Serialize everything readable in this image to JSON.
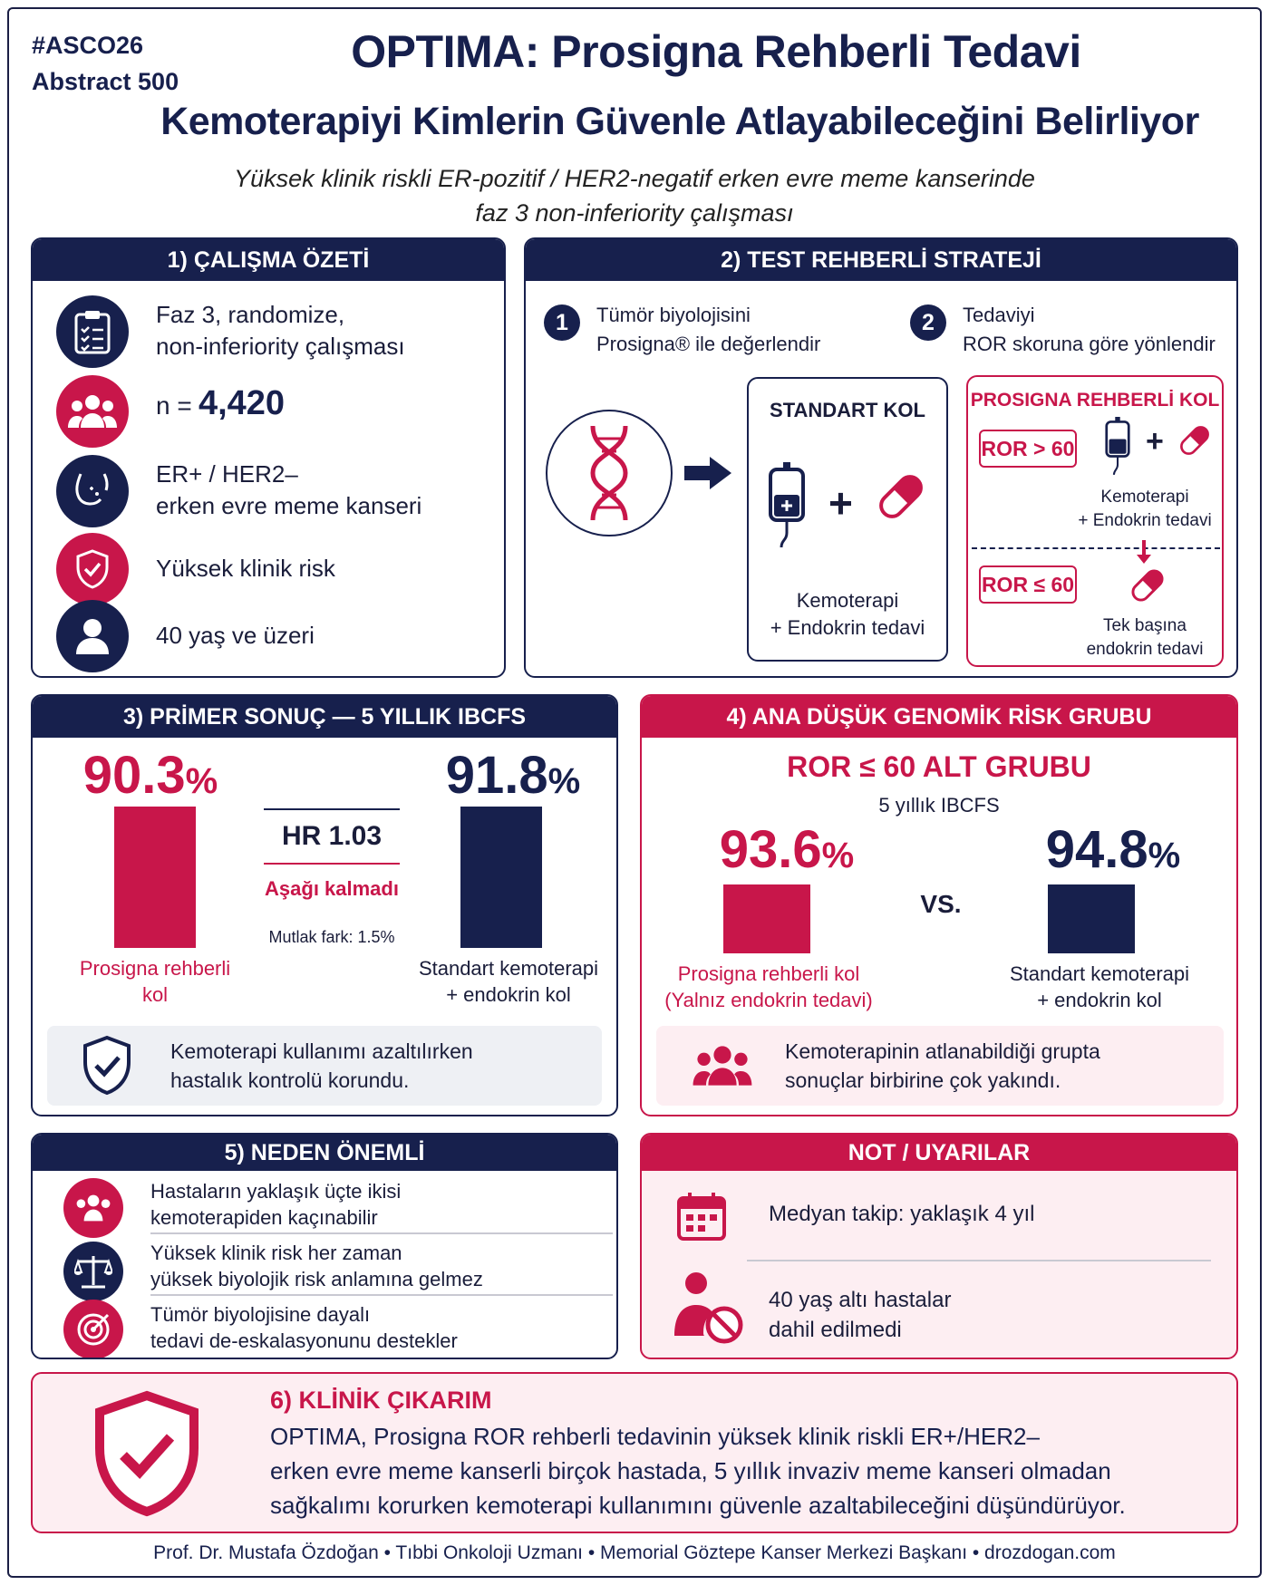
{
  "header": {
    "tag": "#ASCO26",
    "abstract": "Abstract 500",
    "title1": "OPTIMA: Prosigna Rehberli Tedavi",
    "title2": "Kemoterapiyi Kimlerin Güvenle Atlayabileceğini Belirliyor",
    "subtitle1": "Yüksek klinik riskli ER-pozitif / HER2-negatif erken evre meme kanserinde",
    "subtitle2": "faz 3 non-inferiority çalışması"
  },
  "s1": {
    "head": "1) ÇALIŞMA ÖZETİ",
    "design_1": "Faz 3, randomize,",
    "design_2": "non-inferiority çalışması",
    "n_prefix": "n =",
    "n_value": "4,420",
    "pop_1": "ER+ / HER2–",
    "pop_2": "erken evre meme kanseri",
    "risk": "Yüksek klinik risk",
    "age": "40 yaş ve üzeri"
  },
  "s2": {
    "head": "2) TEST REHBERLİ STRATEJİ",
    "step1_num": "1",
    "step1_a": "Tümör biyolojisini",
    "step1_b": "Prosigna® ile değerlendir",
    "step2_num": "2",
    "step2_a": "Tedaviyi",
    "step2_b": "ROR skoruna göre yönlendir",
    "std_title": "STANDART KOL",
    "std_a": "Kemoterapi",
    "std_b": "+ Endokrin tedavi",
    "pg_title": "PROSIGNA REHBERLİ KOL",
    "ror_high": "ROR > 60",
    "high_a": "Kemoterapi",
    "high_b": "+ Endokrin tedavi",
    "ror_low": "ROR ≤ 60",
    "low_a": "Tek başına",
    "low_b": "endokrin tedavi",
    "plus": "+"
  },
  "s3": {
    "head": "3) PRİMER SONUÇ — 5 YILLIK IBCFS",
    "left_pct": "90.3",
    "right_pct": "91.8",
    "pct_sign": "%",
    "hr": "HR 1.03",
    "noninf": "Aşağı kalmadı",
    "diff": "Mutlak fark: 1.5%",
    "left_a": "Prosigna rehberli",
    "left_b": "kol",
    "right_a": "Standart kemoterapi",
    "right_b": "+ endokrin kol",
    "note_a": "Kemoterapi kullanımı azaltılırken",
    "note_b": "hastalık kontrolü korundu."
  },
  "s4": {
    "head": "4) ANA DÜŞÜK GENOMİK RİSK GRUBU",
    "sub": "ROR ≤ 60 ALT GRUBU",
    "sub2": "5 yıllık IBCFS",
    "left_pct": "93.6",
    "right_pct": "94.8",
    "pct_sign": "%",
    "vs": "VS.",
    "left_a": "Prosigna rehberli kol",
    "left_b": "(Yalnız endokrin tedavi)",
    "right_a": "Standart kemoterapi",
    "right_b": "+ endokrin kol",
    "note_a": "Kemoterapinin atlanabildiği grupta",
    "note_b": "sonuçlar birbirine çok yakındı."
  },
  "s5": {
    "head": "5) NEDEN ÖNEMLİ",
    "i1a": "Hastaların yaklaşık üçte ikisi",
    "i1b": "kemoterapiden kaçınabilir",
    "i2a": "Yüksek klinik risk her zaman",
    "i2b": "yüksek biyolojik risk anlamına gelmez",
    "i3a": "Tümör biyolojisine dayalı",
    "i3b": "tedavi de-eskalasyonunu destekler"
  },
  "notes": {
    "head": "NOT / UYARILAR",
    "followup": "Medyan takip: yaklaşık 4 yıl",
    "age_a": "40 yaş altı hastalar",
    "age_b": "dahil edilmedi"
  },
  "s6": {
    "head": "6) KLİNİK ÇIKARIM",
    "l1": "OPTIMA, Prosigna ROR rehberli tedavinin yüksek klinik riskli ER+/HER2–",
    "l2": "erken evre meme kanserli birçok hastada, 5 yıllık invaziv meme kanseri olmadan",
    "l3": "sağkalımı korurken kemoterapi kullanımını güvenle azaltabileceğini düşündürüyor."
  },
  "footer": "Prof. Dr. Mustafa Özdoğan • Tıbbi Onkoloji Uzmanı • Memorial Göztepe Kanser Merkezi Başkanı • drozdogan.com",
  "colors": {
    "navy": "#17204d",
    "red": "#c8164a",
    "pink_bg": "#fdeef2",
    "grey_bg": "#eef0f4"
  }
}
